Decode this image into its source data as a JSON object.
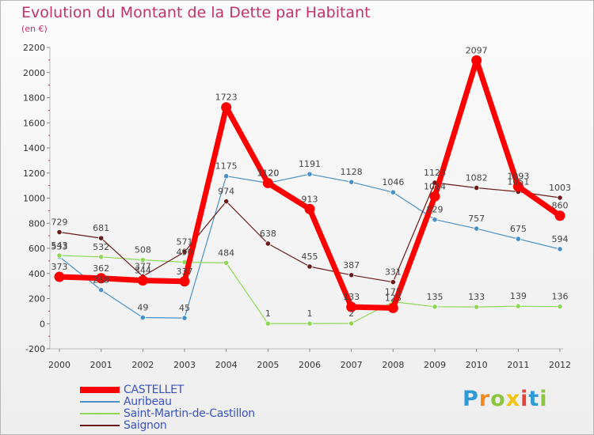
{
  "title": "Evolution du Montant de la Dette par Habitant",
  "subtitle": "(en €)",
  "brand": {
    "letters": [
      {
        "char": "P",
        "color": "#2f9ad6"
      },
      {
        "char": "r",
        "color": "#f08a1c"
      },
      {
        "char": "o",
        "color": "#8cc63f"
      },
      {
        "char": "x",
        "color": "#f0c419"
      },
      {
        "char": "i",
        "color": "#e0443c"
      },
      {
        "char": "t",
        "color": "#2f9ad6"
      },
      {
        "char": "i",
        "color": "#8cc63f"
      }
    ]
  },
  "chart_data": {
    "type": "line",
    "title": "Evolution du Montant de la Dette par Habitant",
    "subtitle": "(en €)",
    "categories": [
      "2000",
      "2001",
      "2002",
      "2003",
      "2004",
      "2005",
      "2006",
      "2007",
      "2008",
      "2009",
      "2010",
      "2011",
      "2012"
    ],
    "ylim": [
      -200,
      2200
    ],
    "yticks": [
      -200,
      0,
      200,
      400,
      600,
      800,
      1000,
      1200,
      1400,
      1600,
      1800,
      2000,
      2200
    ],
    "grid": false,
    "legend_position": "bottom-left",
    "series": [
      {
        "name": "CASTELLET",
        "color": "#ff0000",
        "emphasis": true,
        "values": [
          373,
          362,
          344,
          337,
          1723,
          1120,
          913,
          133,
          125,
          1014,
          2097,
          1093,
          860
        ]
      },
      {
        "name": "Auribeau",
        "color": "#4a90c8",
        "emphasis": false,
        "values": [
          533,
          268,
          49,
          45,
          1175,
          1120,
          1191,
          1128,
          1046,
          829,
          757,
          675,
          594
        ]
      },
      {
        "name": "Saint-Martin-de-Castillon",
        "color": "#8ed855",
        "emphasis": false,
        "values": [
          543,
          532,
          508,
          490,
          484,
          1,
          1,
          2,
          175,
          135,
          133,
          139,
          136
        ]
      },
      {
        "name": "Saignon",
        "color": "#6b1a1a",
        "emphasis": false,
        "values": [
          729,
          681,
          377,
          571,
          974,
          638,
          455,
          387,
          331,
          1123,
          1082,
          1051,
          1003
        ]
      }
    ]
  }
}
